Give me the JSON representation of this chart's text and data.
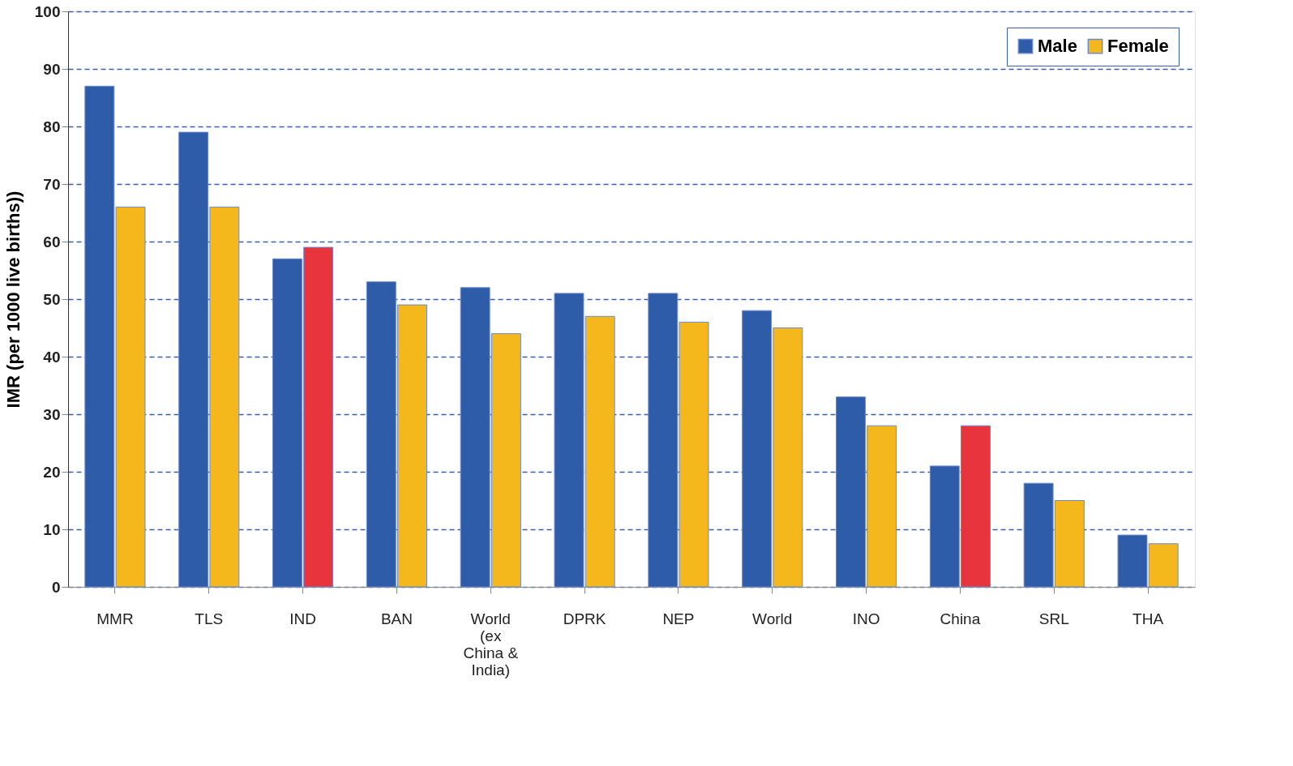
{
  "chart_data": {
    "type": "bar",
    "ylabel": "IMR (per 1000 live births))",
    "categories": [
      "MMR",
      "TLS",
      "IND",
      "BAN",
      "World (ex China & India)",
      "DPRK",
      "NEP",
      "World",
      "INO",
      "China",
      "SRL",
      "THA"
    ],
    "series": [
      {
        "name": "Male",
        "color": "#2e5ca8",
        "values": [
          87,
          79,
          57,
          53,
          52,
          51,
          51,
          48,
          33,
          21,
          18,
          9
        ]
      },
      {
        "name": "Female",
        "color": "#f5b81c",
        "colors": [
          "#f5b81c",
          "#f5b81c",
          "#e8343c",
          "#f5b81c",
          "#f5b81c",
          "#f5b81c",
          "#f5b81c",
          "#f5b81c",
          "#f5b81c",
          "#e8343c",
          "#f5b81c",
          "#f5b81c"
        ],
        "values": [
          66,
          66,
          59,
          49,
          44,
          47,
          46,
          45,
          28,
          28,
          15,
          7.5
        ]
      }
    ],
    "ylim": [
      0,
      100
    ],
    "yticks": [
      0,
      10,
      20,
      30,
      40,
      50,
      60,
      70,
      80,
      90,
      100
    ],
    "grid": "y",
    "legend": "top right"
  }
}
